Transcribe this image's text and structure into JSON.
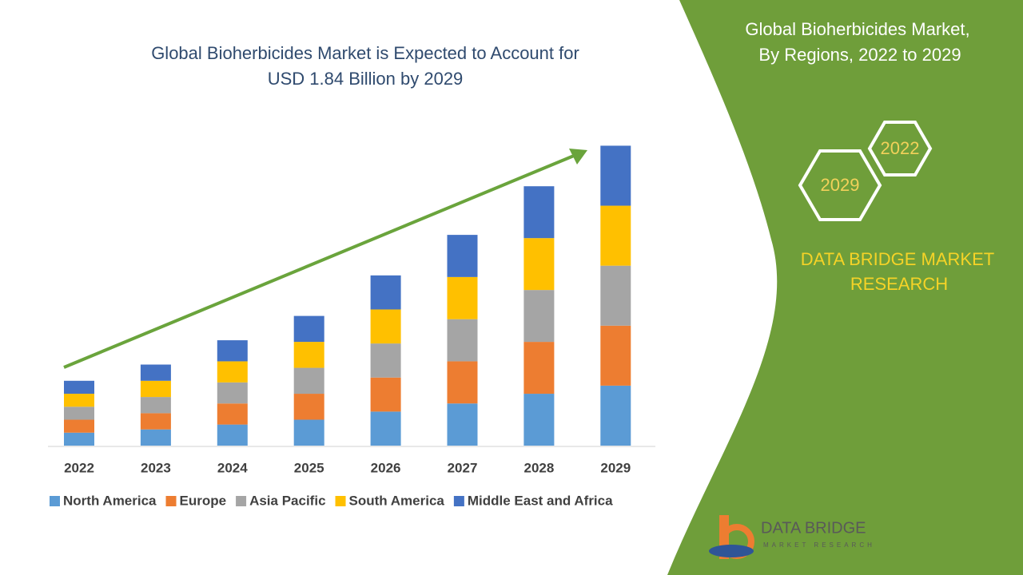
{
  "chart_data": {
    "type": "stacked_bar",
    "title": [
      "Global Bioherbicides Market is Expected to Account for",
      "USD 1.84 Billion by 2029"
    ],
    "categories": [
      "2022",
      "2023",
      "2024",
      "2025",
      "2026",
      "2027",
      "2028",
      "2029"
    ],
    "series": [
      {
        "name": "North America",
        "color": "#5b9bd5",
        "values": [
          0.08,
          0.1,
          0.13,
          0.16,
          0.21,
          0.26,
          0.32,
          0.37
        ]
      },
      {
        "name": "Europe",
        "color": "#ed7d31",
        "values": [
          0.08,
          0.1,
          0.13,
          0.16,
          0.21,
          0.26,
          0.32,
          0.37
        ]
      },
      {
        "name": "Asia Pacific",
        "color": "#a5a5a5",
        "values": [
          0.08,
          0.1,
          0.13,
          0.16,
          0.21,
          0.26,
          0.32,
          0.37
        ]
      },
      {
        "name": "South America",
        "color": "#ffc000",
        "values": [
          0.08,
          0.1,
          0.13,
          0.16,
          0.21,
          0.26,
          0.32,
          0.37
        ]
      },
      {
        "name": "Middle East and Africa",
        "color": "#4472c4",
        "values": [
          0.08,
          0.1,
          0.13,
          0.16,
          0.21,
          0.26,
          0.32,
          0.37
        ]
      }
    ],
    "legend": "bottom"
  },
  "panel": {
    "title": [
      "Global Bioherbicides Market,",
      "By Regions, 2022 to 2029"
    ],
    "hexagons": [
      "2022",
      "2029"
    ],
    "brand": [
      "DATA BRIDGE MARKET",
      "RESEARCH"
    ],
    "logo": "DATA BRIDGE",
    "logo_sub": "MARKET RESEARCH"
  }
}
